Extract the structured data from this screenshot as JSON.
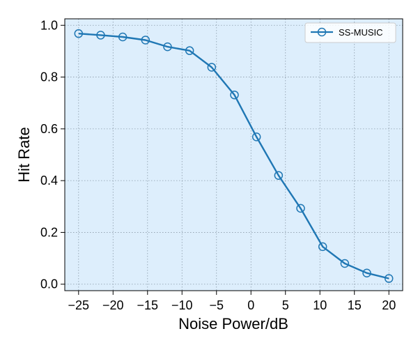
{
  "chart_data": {
    "type": "line",
    "title": "",
    "xlabel": "Noise Power/dB",
    "ylabel": "Hit Rate",
    "xlim": [
      -27,
      22
    ],
    "ylim": [
      -0.025,
      1.025
    ],
    "xticks": [
      -25,
      -20,
      -15,
      -10,
      -5,
      0,
      5,
      10,
      15,
      20
    ],
    "xtick_labels": [
      "−25",
      "−20",
      "−15",
      "−10",
      "−5",
      "0",
      "5",
      "10",
      "15",
      "20"
    ],
    "yticks": [
      0.0,
      0.2,
      0.4,
      0.6,
      0.8,
      1.0
    ],
    "ytick_labels": [
      "0.0",
      "0.2",
      "0.4",
      "0.6",
      "0.8",
      "1.0"
    ],
    "grid": true,
    "legend_position": "top-right",
    "background_color": "#ddeefc",
    "series": [
      {
        "name": "SS-MUSIC",
        "color": "#1f77b4",
        "marker": "circle-open",
        "x": [
          -25,
          -21.8,
          -18.6,
          -15.3,
          -12.1,
          -8.9,
          -5.7,
          -2.4,
          0.8,
          4.0,
          7.2,
          10.4,
          13.6,
          16.8,
          20
        ],
        "y": [
          0.968,
          0.962,
          0.955,
          0.943,
          0.917,
          0.902,
          0.838,
          0.731,
          0.569,
          0.42,
          0.293,
          0.145,
          0.08,
          0.043,
          0.022
        ]
      }
    ]
  }
}
